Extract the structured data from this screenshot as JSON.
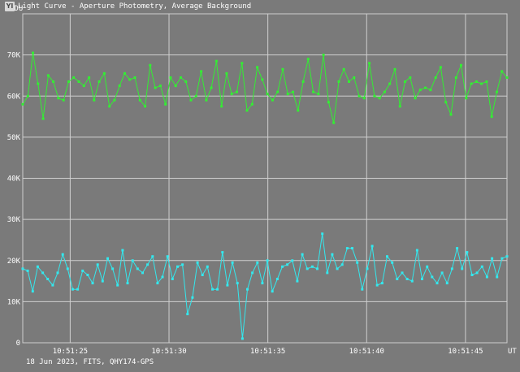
{
  "window": {
    "title": "Light Curve - Aperture Photometry, Average Background",
    "icon": "app-icon",
    "icon_glyph": "YI"
  },
  "footer": {
    "info": "18 Jun 2023, FITS, QHY174-GPS"
  },
  "colors": {
    "background": "#7a7a7a",
    "grid": "#cfcfcf",
    "series_green": "#33ee33",
    "series_cyan": "#33e8ee"
  },
  "chart_data": {
    "type": "line",
    "title": "Light Curve - Aperture Photometry, Average Background",
    "ylabel": "ADU",
    "xlabel": "UT",
    "ylim": [
      0,
      80000
    ],
    "yticks": [
      0,
      10000,
      20000,
      30000,
      40000,
      50000,
      60000,
      70000
    ],
    "ytick_labels": [
      "0",
      "10K",
      "20K",
      "30K",
      "40K",
      "50K",
      "60K",
      "70K"
    ],
    "xlim": [
      "10:51:22.6",
      "10:51:47.1"
    ],
    "xticks": [
      "10:51:25",
      "10:51:30",
      "10:51:35",
      "10:51:40",
      "10:51:45"
    ],
    "grid": true,
    "legend": "none",
    "series": [
      {
        "color": "#33ee33",
        "values": [
          58000,
          60000,
          70500,
          63000,
          54500,
          65000,
          63500,
          59500,
          59000,
          63500,
          64500,
          63500,
          62500,
          64500,
          59000,
          63500,
          65500,
          57500,
          59000,
          62500,
          65500,
          64000,
          64500,
          59000,
          57500,
          67500,
          62000,
          62500,
          58000,
          64500,
          62500,
          64500,
          63500,
          59000,
          60000,
          66000,
          59000,
          62000,
          68500,
          57500,
          65500,
          60500,
          61000,
          68000,
          56500,
          58000,
          67000,
          64000,
          60500,
          59000,
          61000,
          66500,
          60500,
          61000,
          56500,
          63500,
          69000,
          61000,
          60500,
          70000,
          58500,
          53500,
          63500,
          66500,
          63500,
          64500,
          60000,
          59500,
          68000,
          60000,
          59500,
          61000,
          63000,
          66500,
          57500,
          63500,
          64500,
          59500,
          61500,
          62000,
          61500,
          64500,
          67000,
          58500,
          55500,
          64500,
          67500,
          59500,
          63000,
          63500,
          63000,
          63500,
          55000,
          61000,
          66000,
          64500
        ]
      },
      {
        "color": "#33e8ee",
        "values": [
          18000,
          17500,
          12500,
          18500,
          17000,
          15500,
          14000,
          17000,
          21500,
          18000,
          13000,
          13000,
          17500,
          16500,
          14500,
          19000,
          15000,
          20500,
          18000,
          14000,
          22500,
          14500,
          20000,
          18000,
          17000,
          19000,
          21000,
          14500,
          16000,
          21000,
          15500,
          18500,
          19000,
          7000,
          11000,
          19500,
          16500,
          18500,
          13000,
          13000,
          22000,
          14000,
          19500,
          14500,
          1000,
          13000,
          17000,
          19500,
          14500,
          20000,
          12500,
          15500,
          18500,
          19000,
          20000,
          15000,
          21500,
          18000,
          18500,
          18000,
          26500,
          17000,
          21500,
          18000,
          19000,
          23000,
          23000,
          19500,
          13000,
          18000,
          23500,
          14000,
          14500,
          21000,
          19500,
          15500,
          17000,
          15500,
          15000,
          22500,
          15500,
          18500,
          16000,
          14500,
          17000,
          14500,
          18000,
          23000,
          18000,
          22000,
          16500,
          17000,
          18500,
          16000,
          20500,
          16000,
          20500,
          21000
        ]
      }
    ]
  }
}
